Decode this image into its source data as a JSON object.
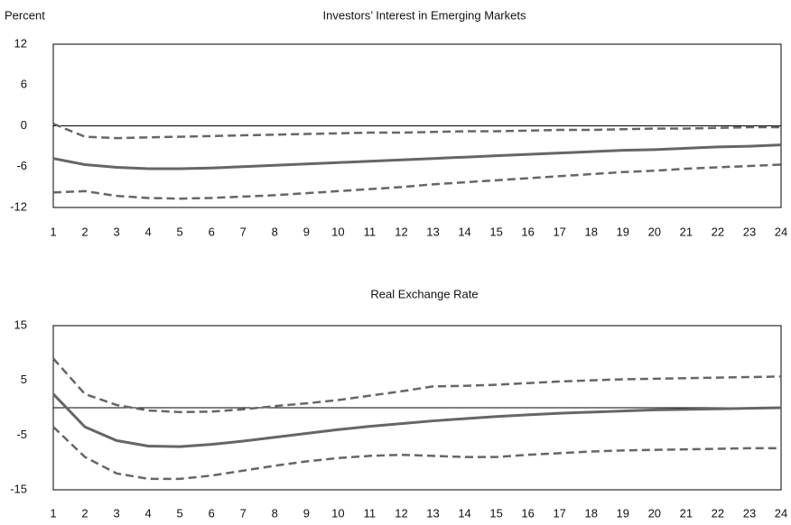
{
  "chart_data": [
    {
      "type": "line",
      "title": "Investors’ Interest in Emerging Markets",
      "y_label": "Percent",
      "x": [
        1,
        2,
        3,
        4,
        5,
        6,
        7,
        8,
        9,
        10,
        11,
        12,
        13,
        14,
        15,
        16,
        17,
        18,
        19,
        20,
        21,
        22,
        23,
        24
      ],
      "xlim": [
        1,
        24
      ],
      "xticks": [
        1,
        2,
        3,
        4,
        5,
        6,
        7,
        8,
        9,
        10,
        11,
        12,
        13,
        14,
        15,
        16,
        17,
        18,
        19,
        20,
        21,
        22,
        23,
        24
      ],
      "ylim": [
        -12,
        12
      ],
      "yticks": [
        -12,
        -6,
        0,
        6,
        12
      ],
      "zero_line": true,
      "series": [
        {
          "color": "#666666",
          "line_style": "solid",
          "values": [
            -4.8,
            -5.7,
            -6.1,
            -6.3,
            -6.3,
            -6.2,
            -6.0,
            -5.8,
            -5.6,
            -5.4,
            -5.2,
            -5.0,
            -4.8,
            -4.6,
            -4.4,
            -4.2,
            -4.0,
            -3.8,
            -3.6,
            -3.5,
            -3.3,
            -3.1,
            -3.0,
            -2.8
          ]
        },
        {
          "color": "#666666",
          "line_style": "dashed",
          "values": [
            0.3,
            -1.6,
            -1.8,
            -1.7,
            -1.6,
            -1.5,
            -1.4,
            -1.3,
            -1.2,
            -1.1,
            -1.0,
            -1.0,
            -0.9,
            -0.8,
            -0.8,
            -0.7,
            -0.6,
            -0.6,
            -0.5,
            -0.4,
            -0.4,
            -0.3,
            -0.2,
            -0.2
          ]
        },
        {
          "color": "#666666",
          "line_style": "dashed",
          "values": [
            -9.8,
            -9.6,
            -10.3,
            -10.6,
            -10.7,
            -10.6,
            -10.4,
            -10.2,
            -9.9,
            -9.6,
            -9.3,
            -9.0,
            -8.6,
            -8.3,
            -8.0,
            -7.7,
            -7.4,
            -7.1,
            -6.8,
            -6.6,
            -6.3,
            -6.1,
            -5.9,
            -5.7
          ]
        }
      ]
    },
    {
      "type": "line",
      "title": "Real Exchange Rate",
      "x": [
        1,
        2,
        3,
        4,
        5,
        6,
        7,
        8,
        9,
        10,
        11,
        12,
        13,
        14,
        15,
        16,
        17,
        18,
        19,
        20,
        21,
        22,
        23,
        24
      ],
      "xlim": [
        1,
        24
      ],
      "xticks": [
        1,
        2,
        3,
        4,
        5,
        6,
        7,
        8,
        9,
        10,
        11,
        12,
        13,
        14,
        15,
        16,
        17,
        18,
        19,
        20,
        21,
        22,
        23,
        24
      ],
      "ylim": [
        -15,
        15
      ],
      "yticks": [
        -15,
        -5,
        5,
        15
      ],
      "zero_line": true,
      "series": [
        {
          "color": "#666666",
          "line_style": "solid",
          "values": [
            2.5,
            -3.5,
            -6,
            -7,
            -7.1,
            -6.7,
            -6.1,
            -5.4,
            -4.7,
            -4.0,
            -3.4,
            -2.9,
            -2.4,
            -2.0,
            -1.6,
            -1.3,
            -1.0,
            -0.8,
            -0.6,
            -0.4,
            -0.3,
            -0.2,
            -0.1,
            0
          ]
        },
        {
          "color": "#666666",
          "line_style": "dashed",
          "values": [
            9,
            2.5,
            0.5,
            -0.5,
            -0.8,
            -0.7,
            -0.3,
            0.3,
            0.8,
            1.4,
            2.2,
            3.0,
            3.9,
            4.0,
            4.2,
            4.5,
            4.8,
            5.0,
            5.2,
            5.3,
            5.4,
            5.5,
            5.6,
            5.7
          ]
        },
        {
          "color": "#666666",
          "line_style": "dashed",
          "values": [
            -3.5,
            -9,
            -12,
            -13,
            -13,
            -12.4,
            -11.5,
            -10.6,
            -9.8,
            -9.2,
            -8.8,
            -8.6,
            -8.8,
            -9.0,
            -9.0,
            -8.6,
            -8.3,
            -8.0,
            -7.8,
            -7.7,
            -7.6,
            -7.5,
            -7.4,
            -7.4
          ]
        }
      ]
    }
  ]
}
